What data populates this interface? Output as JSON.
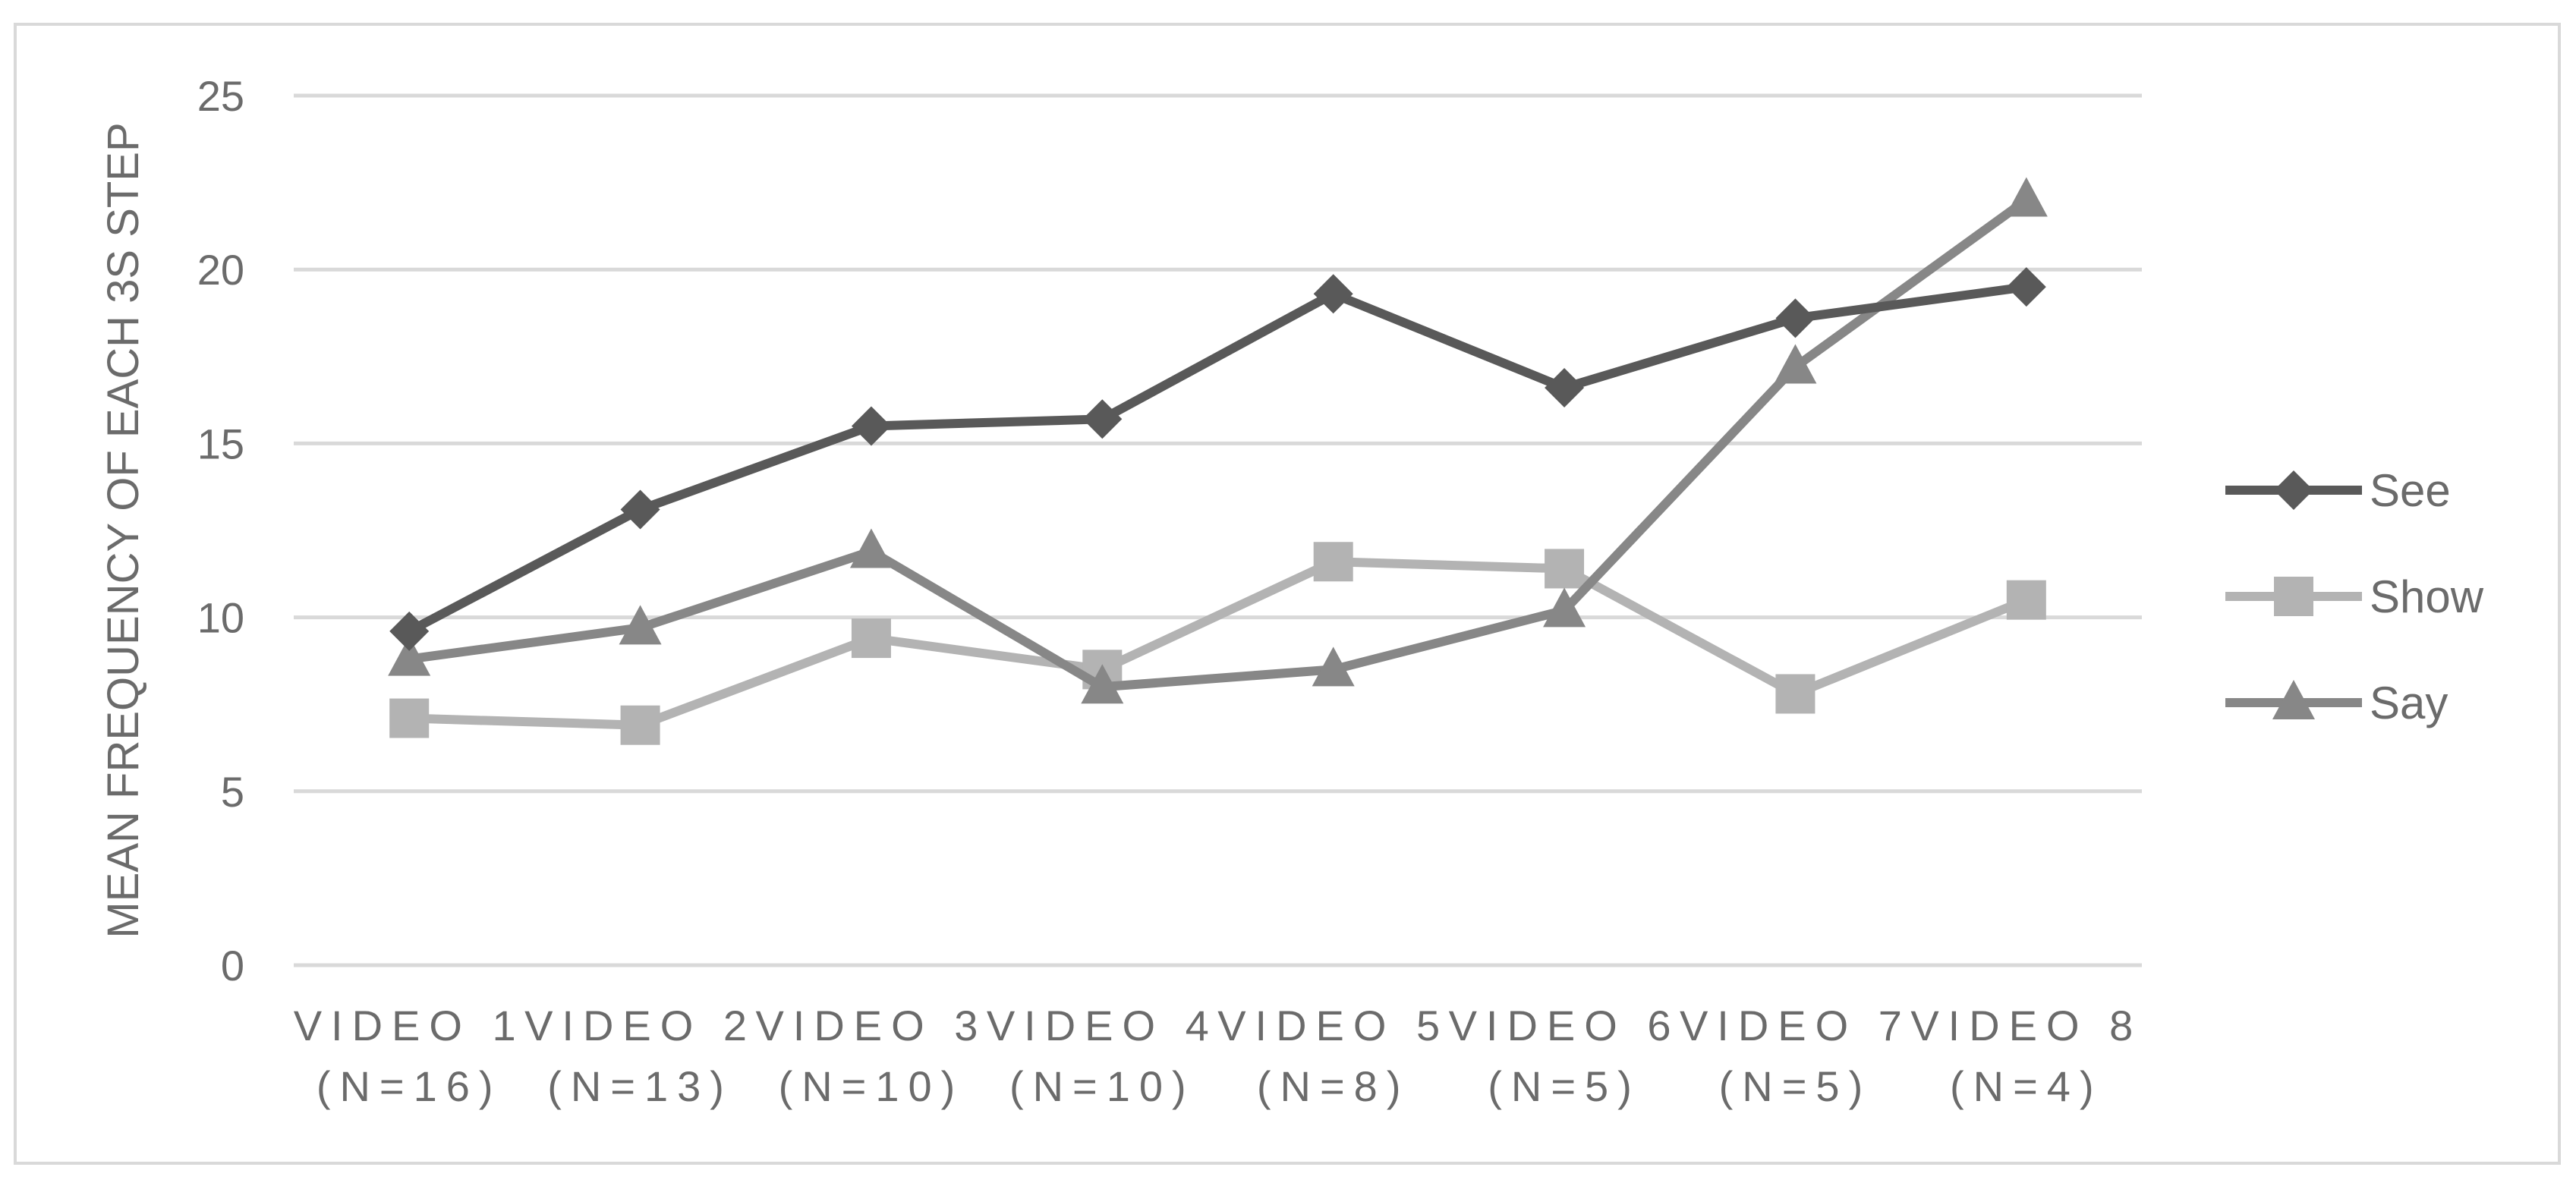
{
  "chart_data": {
    "type": "line",
    "title": "",
    "xlabel": "",
    "ylabel": "MEAN FREQUENCY OF EACH 3S STEP",
    "ylim": [
      0,
      25
    ],
    "yticks": [
      0,
      5,
      10,
      15,
      20,
      25
    ],
    "grid": "horizontal",
    "legend": "right",
    "categories": [
      [
        "VIDEO 1",
        "(N=16)"
      ],
      [
        "VIDEO 2",
        "(N=13)"
      ],
      [
        "VIDEO 3",
        "(N=10)"
      ],
      [
        "VIDEO 4",
        "(N=10)"
      ],
      [
        "VIDEO 5",
        "(N=8)"
      ],
      [
        "VIDEO 6",
        "(N=5)"
      ],
      [
        "VIDEO 7",
        "(N=5)"
      ],
      [
        "VIDEO 8",
        "(N=4)"
      ]
    ],
    "series": [
      {
        "name": "See",
        "marker": "diamond",
        "color": "#595959",
        "values": [
          9.6,
          13.1,
          15.5,
          15.7,
          19.3,
          16.6,
          18.6,
          19.5
        ]
      },
      {
        "name": "Show",
        "marker": "square",
        "color": "#b3b3b3",
        "values": [
          7.1,
          6.9,
          9.4,
          8.5,
          11.6,
          11.4,
          7.8,
          10.5
        ]
      },
      {
        "name": "Say",
        "marker": "triangle",
        "color": "#878787",
        "values": [
          8.8,
          9.7,
          11.9,
          8.0,
          8.5,
          10.2,
          17.2,
          22.0
        ]
      }
    ]
  }
}
